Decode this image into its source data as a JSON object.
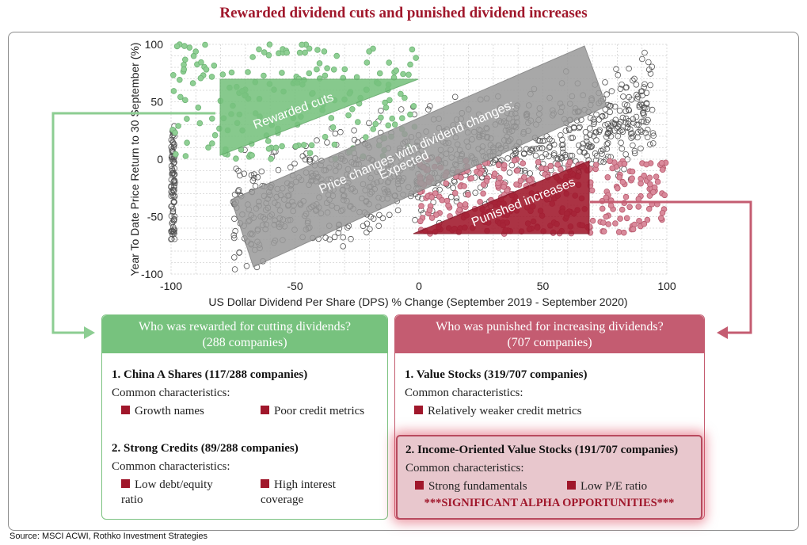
{
  "title": "Rewarded dividend cuts and punished dividend increases",
  "source": "Source: MSCI ACWI, Rothko Investment Strategies",
  "colors": {
    "title": "#a0172b",
    "green": "#77c27e",
    "red": "#c45c71",
    "bullet": "#a0172b",
    "expected_band": "#9a9a9a"
  },
  "chart_data": {
    "type": "scatter",
    "title": "",
    "xlabel": "US Dollar Dividend Per Share (DPS) % Change (September 2019 - September 2020)",
    "ylabel": "Year To Date Price Return to 30 September (%)",
    "xlim": [
      -100,
      100
    ],
    "ylim": [
      -100,
      100
    ],
    "xticks": [
      -100,
      -50,
      0,
      50,
      100
    ],
    "yticks": [
      100,
      50,
      0,
      -50,
      -100
    ],
    "grid": true,
    "annotations": {
      "rewarded": "Rewarded cuts",
      "expected_line1": "Price changes with dividend changes:",
      "expected_line2": "Expected",
      "punished": "Punished increases"
    },
    "regions": [
      {
        "name": "Rewarded cuts",
        "x": [
          -100,
          0
        ],
        "y": [
          0,
          100
        ],
        "highlight": "green"
      },
      {
        "name": "Punished increases",
        "x": [
          0,
          100
        ],
        "y": [
          -70,
          0
        ],
        "highlight": "red"
      }
    ],
    "point_counts": {
      "rewarded_cuts": 288,
      "punished_increases": 707
    }
  },
  "panels": {
    "rewarded": {
      "header_line1": "Who was rewarded for cutting dividends?",
      "header_line2": "(288 companies)",
      "groups": [
        {
          "title": "1. China A Shares (117/288 companies)",
          "subtitle": "Common characteristics:",
          "items": [
            "Growth names",
            "Poor credit metrics"
          ]
        },
        {
          "title": "2. Strong Credits (89/288 companies)",
          "subtitle": "Common characteristics:",
          "items": [
            "Low debt/equity ratio",
            "High interest coverage"
          ]
        }
      ]
    },
    "punished": {
      "header_line1": "Who was punished for increasing dividends?",
      "header_line2": "(707 companies)",
      "groups": [
        {
          "title": "1. Value Stocks (319/707 companies)",
          "subtitle": "Common characteristics:",
          "items": [
            "Relatively weaker credit metrics"
          ]
        },
        {
          "title": "2. Income-Oriented Value Stocks (191/707 companies)",
          "subtitle": "Common characteristics:",
          "items": [
            "Strong fundamentals",
            "Low P/E ratio"
          ],
          "callout": "***SIGNIFICANT ALPHA OPPORTUNITIES***"
        }
      ]
    }
  }
}
